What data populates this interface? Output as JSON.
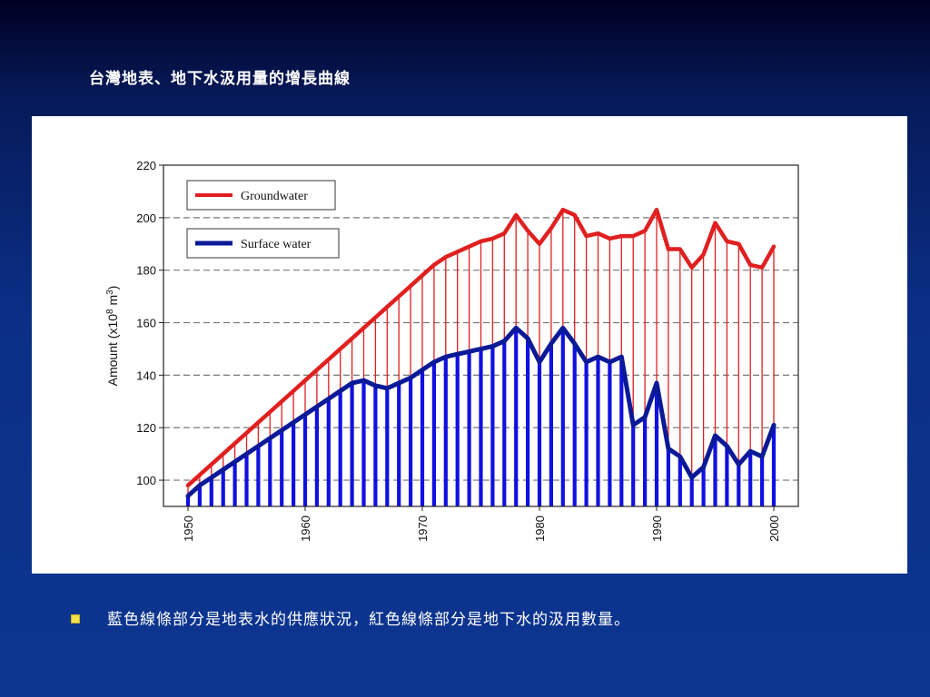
{
  "slide": {
    "title": "台灣地表、地下水汲用量的增長曲線",
    "bullet": "藍色線條部分是地表水的供應狀況，紅色線條部分是地下水的汲用數量。",
    "bullet_icon": "square-bullet-icon"
  },
  "chart_data": {
    "type": "line",
    "ylabel": "Amount (x10^8 m^3)",
    "ylabel_parts": {
      "base": "Amount (x10",
      "exp1": "8",
      "mid": " m",
      "exp2": "3",
      "end": ")"
    },
    "xlabel": "",
    "xlim": [
      1950,
      2000
    ],
    "ylim": [
      90,
      220
    ],
    "x_ticks": [
      "1950",
      "1960",
      "1970",
      "1980",
      "1990",
      "2000"
    ],
    "x_tick_values": [
      1950,
      1960,
      1970,
      1980,
      1990,
      2000
    ],
    "y_ticks": [
      "100",
      "120",
      "140",
      "160",
      "180",
      "200",
      "220"
    ],
    "y_tick_values": [
      100,
      120,
      140,
      160,
      180,
      200,
      220
    ],
    "grid": "horizontal dashed",
    "legend_placement": "top-left",
    "x": [
      1950,
      1951,
      1952,
      1953,
      1954,
      1955,
      1956,
      1957,
      1958,
      1959,
      1960,
      1961,
      1962,
      1963,
      1964,
      1965,
      1966,
      1967,
      1968,
      1969,
      1970,
      1971,
      1972,
      1973,
      1974,
      1975,
      1976,
      1977,
      1978,
      1979,
      1980,
      1981,
      1982,
      1983,
      1984,
      1985,
      1986,
      1987,
      1988,
      1989,
      1990,
      1991,
      1992,
      1993,
      1994,
      1995,
      1996,
      1997,
      1998,
      1999,
      2000
    ],
    "series": [
      {
        "name": "Groundwater",
        "color": "#e02020",
        "values": [
          98,
          102,
          106,
          110,
          114,
          118,
          122,
          126,
          130,
          134,
          138,
          142,
          146,
          150,
          154,
          158,
          162,
          166,
          170,
          174,
          178,
          182,
          185,
          187,
          189,
          191,
          192,
          194,
          201,
          195,
          190,
          196,
          203,
          201,
          193,
          194,
          192,
          193,
          193,
          195,
          203,
          188,
          188,
          181,
          186,
          198,
          191,
          190,
          182,
          181,
          189
        ]
      },
      {
        "name": "Surface water",
        "color": "#0a1a96",
        "values": [
          94,
          98,
          101,
          104,
          107,
          110,
          113,
          116,
          119,
          122,
          125,
          128,
          131,
          134,
          137,
          138,
          136,
          135,
          137,
          139,
          142,
          145,
          147,
          148,
          149,
          150,
          151,
          153,
          158,
          154,
          145,
          152,
          158,
          152,
          145,
          147,
          145,
          147,
          121,
          124,
          137,
          112,
          109,
          101,
          105,
          117,
          113,
          106,
          111,
          109,
          121
        ]
      }
    ]
  }
}
